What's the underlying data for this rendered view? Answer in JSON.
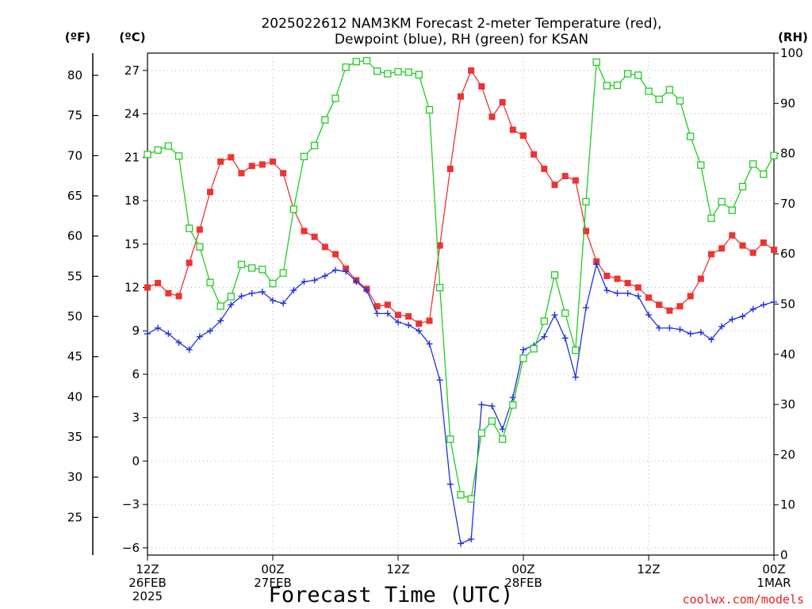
{
  "title_line1": "2025022612 NAM3KM Forecast 2-meter Temperature (red),",
  "title_line2": "Dewpoint (blue), RH (green) for KSAN",
  "unit_f": "(ºF)",
  "unit_c": "(ºC)",
  "unit_rh": "(RH)",
  "x_axis_label": "Forecast Time (UTC)",
  "credit": "coolwx.com/models",
  "colors": {
    "temperature": "#ee3333",
    "dewpoint": "#2233dd",
    "rh": "#22cc22",
    "grid": "#b5b5b5"
  },
  "chart_data": {
    "type": "line",
    "x_unit": "forecast hour from 2025-02-26 12Z",
    "x": [
      0,
      1,
      2,
      3,
      4,
      5,
      6,
      7,
      8,
      9,
      10,
      11,
      12,
      13,
      14,
      15,
      16,
      17,
      18,
      19,
      20,
      21,
      22,
      23,
      24,
      25,
      26,
      27,
      28,
      29,
      30,
      31,
      32,
      33,
      34,
      35,
      36,
      37,
      38,
      39,
      40,
      41,
      42,
      43,
      44,
      45,
      46,
      47,
      48,
      49,
      50,
      51,
      52,
      53,
      54,
      55,
      56,
      57,
      58,
      59,
      60
    ],
    "x_ticks": [
      {
        "x": 0,
        "lines": [
          "12Z",
          "26FEB",
          "2025"
        ]
      },
      {
        "x": 12,
        "lines": [
          "00Z",
          "27FEB"
        ]
      },
      {
        "x": 24,
        "lines": [
          "12Z"
        ]
      },
      {
        "x": 36,
        "lines": [
          "00Z",
          "28FEB"
        ]
      },
      {
        "x": 48,
        "lines": [
          "12Z"
        ]
      },
      {
        "x": 60,
        "lines": [
          "00Z",
          "1MAR"
        ]
      }
    ],
    "xlim": [
      0,
      60
    ],
    "y_left_c": {
      "label": "(ºC)",
      "ylim": [
        -6.5,
        28.2
      ],
      "ticks": [
        -6,
        -3,
        0,
        3,
        6,
        9,
        12,
        15,
        18,
        21,
        24,
        27
      ]
    },
    "y_left_f": {
      "label": "(ºF)",
      "ticks": [
        25,
        30,
        35,
        40,
        45,
        50,
        55,
        60,
        65,
        70,
        75,
        80
      ]
    },
    "y_right_rh": {
      "label": "(RH)",
      "ylim": [
        0,
        100
      ],
      "ticks": [
        0,
        10,
        20,
        30,
        40,
        50,
        60,
        70,
        80,
        90,
        100
      ]
    },
    "grid": true,
    "series": [
      {
        "name": "Temperature",
        "color": "#ee3333",
        "axis": "c",
        "marker": "filled-square",
        "values": [
          12.0,
          12.3,
          11.6,
          11.4,
          13.7,
          16.0,
          18.6,
          20.7,
          21.0,
          19.9,
          20.4,
          20.5,
          20.7,
          19.9,
          17.4,
          15.9,
          15.5,
          14.8,
          14.3,
          13.3,
          12.5,
          11.9,
          10.7,
          10.8,
          10.1,
          10.0,
          9.5,
          9.7,
          14.9,
          20.2,
          25.2,
          27.0,
          25.9,
          23.8,
          24.8,
          22.9,
          22.5,
          21.2,
          20.2,
          19.1,
          19.7,
          19.4,
          15.9,
          13.8,
          12.8,
          12.6,
          12.3,
          12.0,
          11.3,
          10.8,
          10.4,
          10.7,
          11.4,
          12.6,
          14.3,
          14.7,
          15.6,
          14.9,
          14.4,
          15.1,
          14.6
        ]
      },
      {
        "name": "Dewpoint",
        "color": "#2233dd",
        "axis": "c",
        "marker": "plus",
        "values": [
          8.8,
          9.2,
          8.8,
          8.2,
          7.7,
          8.6,
          9.0,
          9.7,
          10.8,
          11.4,
          11.6,
          11.7,
          11.1,
          10.9,
          11.8,
          12.4,
          12.5,
          12.8,
          13.2,
          13.1,
          12.4,
          11.8,
          10.2,
          10.2,
          9.6,
          9.4,
          9.0,
          8.1,
          5.6,
          -1.6,
          -5.7,
          -5.4,
          3.9,
          3.8,
          2.2,
          4.4,
          7.7,
          8.0,
          8.6,
          10.1,
          8.5,
          5.8,
          10.6,
          13.6,
          11.8,
          11.6,
          11.6,
          11.4,
          10.1,
          9.2,
          9.2,
          9.1,
          8.8,
          8.9,
          8.4,
          9.3,
          9.8,
          10.0,
          10.5,
          10.8,
          11.0
        ]
      },
      {
        "name": "RH",
        "color": "#22cc22",
        "axis": "rh",
        "marker": "open-square",
        "values": [
          79.8,
          80.7,
          81.5,
          79.5,
          65.1,
          61.4,
          54.3,
          49.6,
          51.5,
          57.9,
          57.2,
          56.9,
          54.1,
          56.2,
          68.9,
          79.4,
          81.6,
          86.7,
          91.0,
          97.2,
          98.3,
          98.5,
          96.4,
          95.9,
          96.3,
          96.2,
          95.7,
          88.7,
          53.3,
          23.1,
          12.0,
          11.2,
          24.3,
          26.7,
          23.1,
          29.9,
          39.2,
          41.1,
          46.6,
          55.8,
          48.2,
          40.8,
          70.4,
          98.2,
          93.5,
          93.6,
          95.9,
          95.6,
          92.4,
          90.8,
          92.7,
          90.5,
          83.4,
          77.7,
          67.1,
          70.4,
          68.7,
          73.4,
          77.9,
          75.9,
          79.6
        ]
      }
    ]
  }
}
